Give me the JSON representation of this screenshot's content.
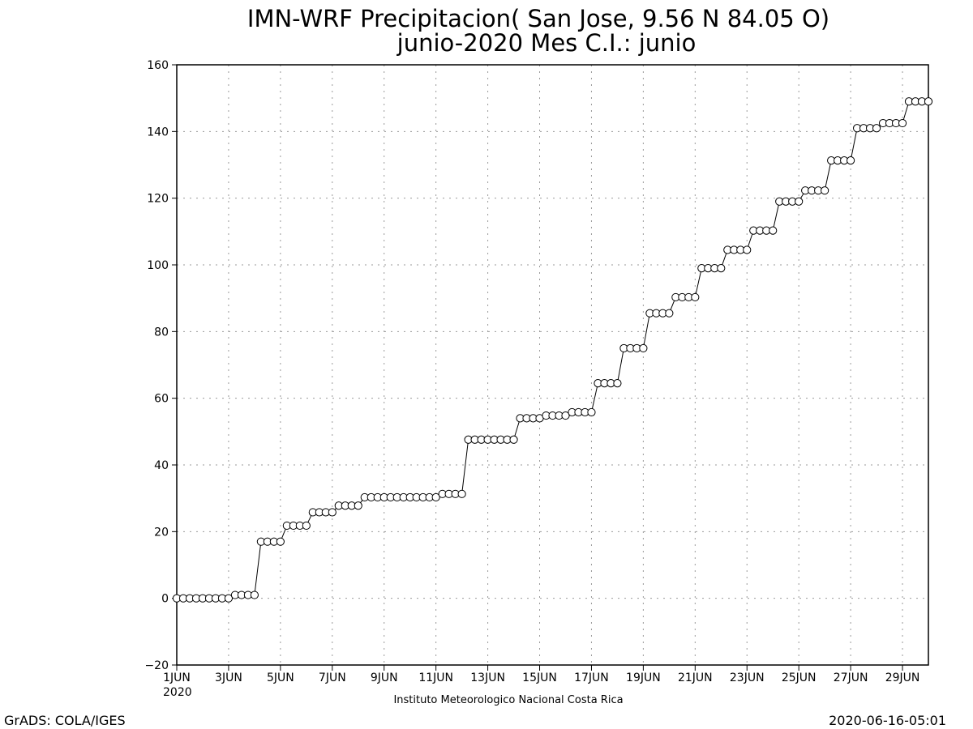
{
  "chart_data": {
    "type": "line",
    "title": "IMN-WRF  Precipitacion( San Jose, 9.56  N 84.05  O)",
    "subtitle": "junio-2020 Mes C.I.: junio",
    "xlabel": "",
    "ylabel": "",
    "x_unit": "day of June 2020",
    "xlim": [
      1,
      30
    ],
    "ylim": [
      -20,
      160
    ],
    "y_ticks": [
      -20,
      0,
      20,
      40,
      60,
      80,
      100,
      120,
      140,
      160
    ],
    "x_ticks": [
      {
        "x": 1,
        "label": "1JUN"
      },
      {
        "x": 3,
        "label": "3JUN"
      },
      {
        "x": 5,
        "label": "5JUN"
      },
      {
        "x": 7,
        "label": "7JUN"
      },
      {
        "x": 9,
        "label": "9JUN"
      },
      {
        "x": 11,
        "label": "11JUN"
      },
      {
        "x": 13,
        "label": "13JUN"
      },
      {
        "x": 15,
        "label": "15JUN"
      },
      {
        "x": 17,
        "label": "17JUN"
      },
      {
        "x": 19,
        "label": "19JUN"
      },
      {
        "x": 21,
        "label": "21JUN"
      },
      {
        "x": 23,
        "label": "23JUN"
      },
      {
        "x": 25,
        "label": "25JUN"
      },
      {
        "x": 27,
        "label": "27JUN"
      },
      {
        "x": 29,
        "label": "29JUN"
      }
    ],
    "x_year_label": "2020",
    "grid": true,
    "marker": "open-circle",
    "line_color": "#000000",
    "series": [
      {
        "x": [
          1,
          1.25,
          1.5,
          1.75,
          2,
          2.25,
          2.5,
          2.75,
          3,
          3.25,
          3.5,
          3.75,
          4,
          4.25,
          4.5,
          4.75,
          5,
          5.25,
          5.5,
          5.75,
          6,
          6.25,
          6.5,
          6.75,
          7,
          7.25,
          7.5,
          7.75,
          8,
          8.25,
          8.5,
          8.75,
          9,
          9.25,
          9.5,
          9.75,
          10,
          10.25,
          10.5,
          10.75,
          11,
          11.25,
          11.5,
          11.75,
          12,
          12.25,
          12.5,
          12.75,
          13,
          13.25,
          13.5,
          13.75,
          14,
          14.25,
          14.5,
          14.75,
          15,
          15.25,
          15.5,
          15.75,
          16,
          16.25,
          16.5,
          16.75,
          17,
          17.25,
          17.5,
          17.75,
          18,
          18.25,
          18.5,
          18.75,
          19,
          19.25,
          19.5,
          19.75,
          20,
          20.25,
          20.5,
          20.75,
          21,
          21.25,
          21.5,
          21.75,
          22,
          22.25,
          22.5,
          22.75,
          23,
          23.25,
          23.5,
          23.75,
          24,
          24.25,
          24.5,
          24.75,
          25,
          25.25,
          25.5,
          25.75,
          26,
          26.25,
          26.5,
          26.75,
          27,
          27.25,
          27.5,
          27.75,
          28,
          28.25,
          28.5,
          28.75,
          29,
          29.25,
          29.5,
          29.75,
          30
        ],
        "y": [
          0,
          0,
          0,
          0,
          0,
          0,
          0,
          0,
          0,
          1,
          1,
          1,
          1,
          17,
          17,
          17,
          17,
          21.8,
          21.8,
          21.8,
          21.8,
          25.8,
          25.8,
          25.8,
          25.8,
          27.8,
          27.8,
          27.8,
          27.8,
          30.3,
          30.3,
          30.3,
          30.3,
          30.3,
          30.3,
          30.3,
          30.3,
          30.3,
          30.3,
          30.3,
          30.3,
          31.3,
          31.3,
          31.3,
          31.3,
          47.6,
          47.6,
          47.6,
          47.6,
          47.6,
          47.6,
          47.6,
          47.6,
          54,
          54,
          54,
          54,
          54.8,
          54.8,
          54.8,
          54.8,
          55.8,
          55.8,
          55.8,
          55.8,
          64.5,
          64.5,
          64.5,
          64.5,
          75,
          75,
          75,
          75,
          85.5,
          85.5,
          85.5,
          85.5,
          90.3,
          90.3,
          90.3,
          90.3,
          99,
          99,
          99,
          99,
          104.5,
          104.5,
          104.5,
          104.5,
          110.3,
          110.3,
          110.3,
          110.3,
          119,
          119,
          119,
          119,
          122.3,
          122.3,
          122.3,
          122.3,
          131.3,
          131.3,
          131.3,
          131.3,
          141,
          141,
          141,
          141,
          142.5,
          142.5,
          142.5,
          142.5,
          149,
          149,
          149,
          149
        ]
      }
    ]
  },
  "footer": {
    "institution": "Instituto Meteorologico Nacional Costa Rica",
    "credit": "GrADS: COLA/IGES",
    "timestamp": "2020-06-16-05:01"
  }
}
